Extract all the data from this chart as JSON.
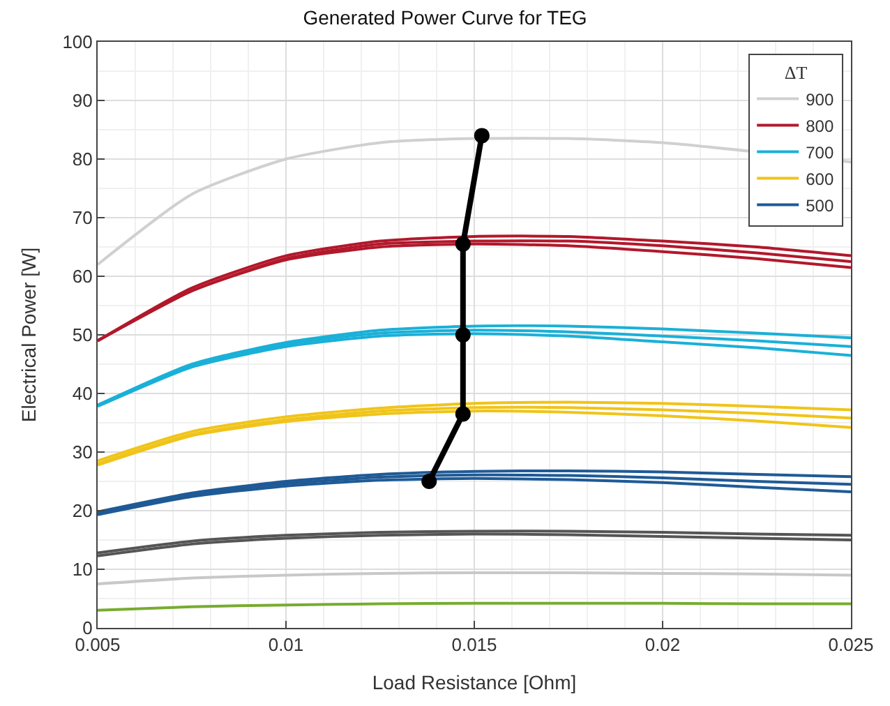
{
  "chart_data": {
    "type": "line",
    "title": "Generated Power Curve for TEG",
    "xlabel": "Load Resistance [Ohm]",
    "ylabel": "Electrical Power [W]",
    "legend_title": "ΔT",
    "x": [
      0.005,
      0.0075,
      0.01,
      0.0125,
      0.015,
      0.0175,
      0.02,
      0.0225,
      0.025
    ],
    "xlim": [
      0.005,
      0.025
    ],
    "xticks": [
      0.005,
      0.01,
      0.015,
      0.02,
      0.025
    ],
    "ylim": [
      0,
      100
    ],
    "yticks": [
      0,
      10,
      20,
      30,
      40,
      50,
      60,
      70,
      80,
      90,
      100
    ],
    "grid": true,
    "legend": "top right",
    "marker": "none",
    "line_style": "solid",
    "series": [
      {
        "name": "900",
        "color": "#d0d0d0",
        "x": [
          0.005,
          0.0075,
          0.01,
          0.0125,
          0.015,
          0.0175,
          0.02,
          0.025
        ],
        "values": [
          62,
          74,
          80,
          82.8,
          83.5,
          83.5,
          82.8,
          79.5
        ]
      },
      {
        "name": "800",
        "color": "#b2182b",
        "values": [
          49,
          58,
          63.5,
          66,
          66.8,
          66.8,
          66,
          65,
          63.5
        ]
      },
      {
        "color": "#b2182b",
        "values": [
          49,
          57.5,
          63,
          65.5,
          66,
          66,
          65.2,
          64,
          62.5
        ]
      },
      {
        "color": "#b2182b",
        "values": [
          49,
          57.5,
          62.8,
          65,
          65.5,
          65.2,
          64.2,
          63,
          61.5
        ]
      },
      {
        "name": "700",
        "color": "#1ab0d8",
        "values": [
          38,
          45,
          48.7,
          50.8,
          51.5,
          51.5,
          51,
          50.3,
          49.5
        ]
      },
      {
        "color": "#1ab0d8",
        "values": [
          38,
          44.8,
          48.4,
          50.3,
          50.8,
          50.5,
          49.8,
          49,
          48
        ]
      },
      {
        "color": "#1ab0d8",
        "values": [
          37.8,
          44.5,
          48,
          49.8,
          50.2,
          49.8,
          48.8,
          47.8,
          46.5
        ]
      },
      {
        "name": "600",
        "color": "#f0c419",
        "values": [
          28.5,
          33.5,
          36,
          37.5,
          38.3,
          38.5,
          38.3,
          37.8,
          37.2
        ]
      },
      {
        "color": "#f0c419",
        "values": [
          28,
          33,
          35.5,
          37,
          37.6,
          37.6,
          37.2,
          36.6,
          35.8
        ]
      },
      {
        "color": "#f0c419",
        "values": [
          27.8,
          32.8,
          35.2,
          36.5,
          37,
          36.8,
          36.2,
          35.3,
          34.2
        ]
      },
      {
        "name": "500",
        "color": "#1f5a96",
        "values": [
          19.8,
          23,
          25,
          26.2,
          26.7,
          26.8,
          26.6,
          26.2,
          25.8
        ]
      },
      {
        "color": "#1f5a96",
        "values": [
          19.5,
          22.7,
          24.6,
          25.7,
          26.1,
          26,
          25.6,
          25,
          24.5
        ]
      },
      {
        "color": "#1f5a96",
        "values": [
          19.3,
          22.4,
          24.2,
          25.2,
          25.5,
          25.3,
          24.8,
          24,
          23.2
        ]
      },
      {
        "color": "#555555",
        "values": [
          12.8,
          14.8,
          15.8,
          16.3,
          16.5,
          16.5,
          16.3,
          16,
          15.8
        ]
      },
      {
        "color": "#555555",
        "values": [
          12.3,
          14.3,
          15.3,
          15.8,
          16,
          15.9,
          15.6,
          15.3,
          15
        ]
      },
      {
        "color": "#c8c8c8",
        "values": [
          7.5,
          8.5,
          9,
          9.3,
          9.4,
          9.4,
          9.3,
          9.2,
          9
        ]
      },
      {
        "color": "#77ac30",
        "values": [
          3,
          3.6,
          3.9,
          4.1,
          4.2,
          4.2,
          4.2,
          4.1,
          4.1
        ]
      },
      {
        "color": "#000000",
        "marker": "circle",
        "x": [
          0.0138,
          0.0147,
          0.0147,
          0.0147,
          0.0152
        ],
        "values": [
          25,
          36.5,
          50,
          65.5,
          84
        ]
      }
    ]
  }
}
